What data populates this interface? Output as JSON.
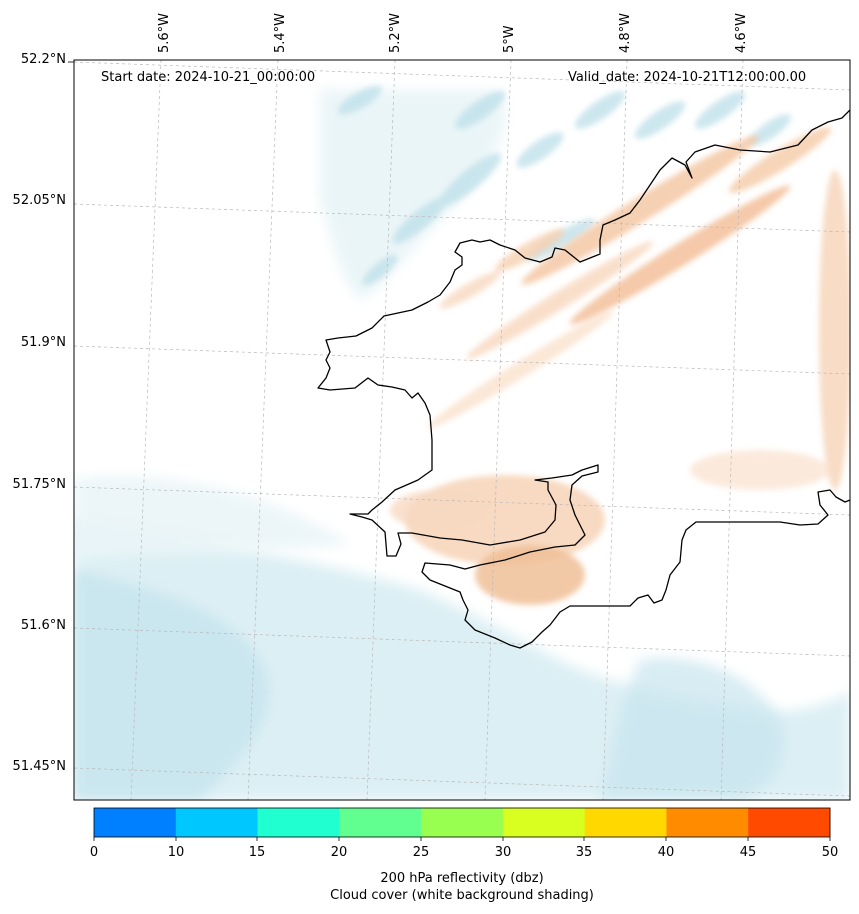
{
  "map": {
    "annotations": {
      "start": "Start date: 2024-10-21_00:00:00",
      "valid": "Valid_date: 2024-10-21T12:00:00.00"
    },
    "lon_ticks": [
      "5.6°W",
      "5.4°W",
      "5.2°W",
      "5°W",
      "4.8°W",
      "4.6°W"
    ],
    "lat_ticks": [
      "52.2°N",
      "52.05°N",
      "51.9°N",
      "51.75°N",
      "51.6°N",
      "51.45°N"
    ],
    "colors": {
      "coastline": "#000000",
      "gridline": "#b0b0b0",
      "cloud_blue": "#bfe0ea",
      "warm_orange": "#f3c29c"
    }
  },
  "colorbar": {
    "ticks": [
      "0",
      "10",
      "15",
      "20",
      "25",
      "30",
      "35",
      "40",
      "45",
      "50"
    ],
    "colors": [
      "#0080ff",
      "#00c8ff",
      "#20ffd0",
      "#60ff90",
      "#98ff50",
      "#d8ff20",
      "#ffd800",
      "#ff8c00",
      "#ff4a00"
    ],
    "label_line1": "200 hPa reflectivity (dbz)",
    "label_line2": "Cloud cover (white background shading)"
  }
}
